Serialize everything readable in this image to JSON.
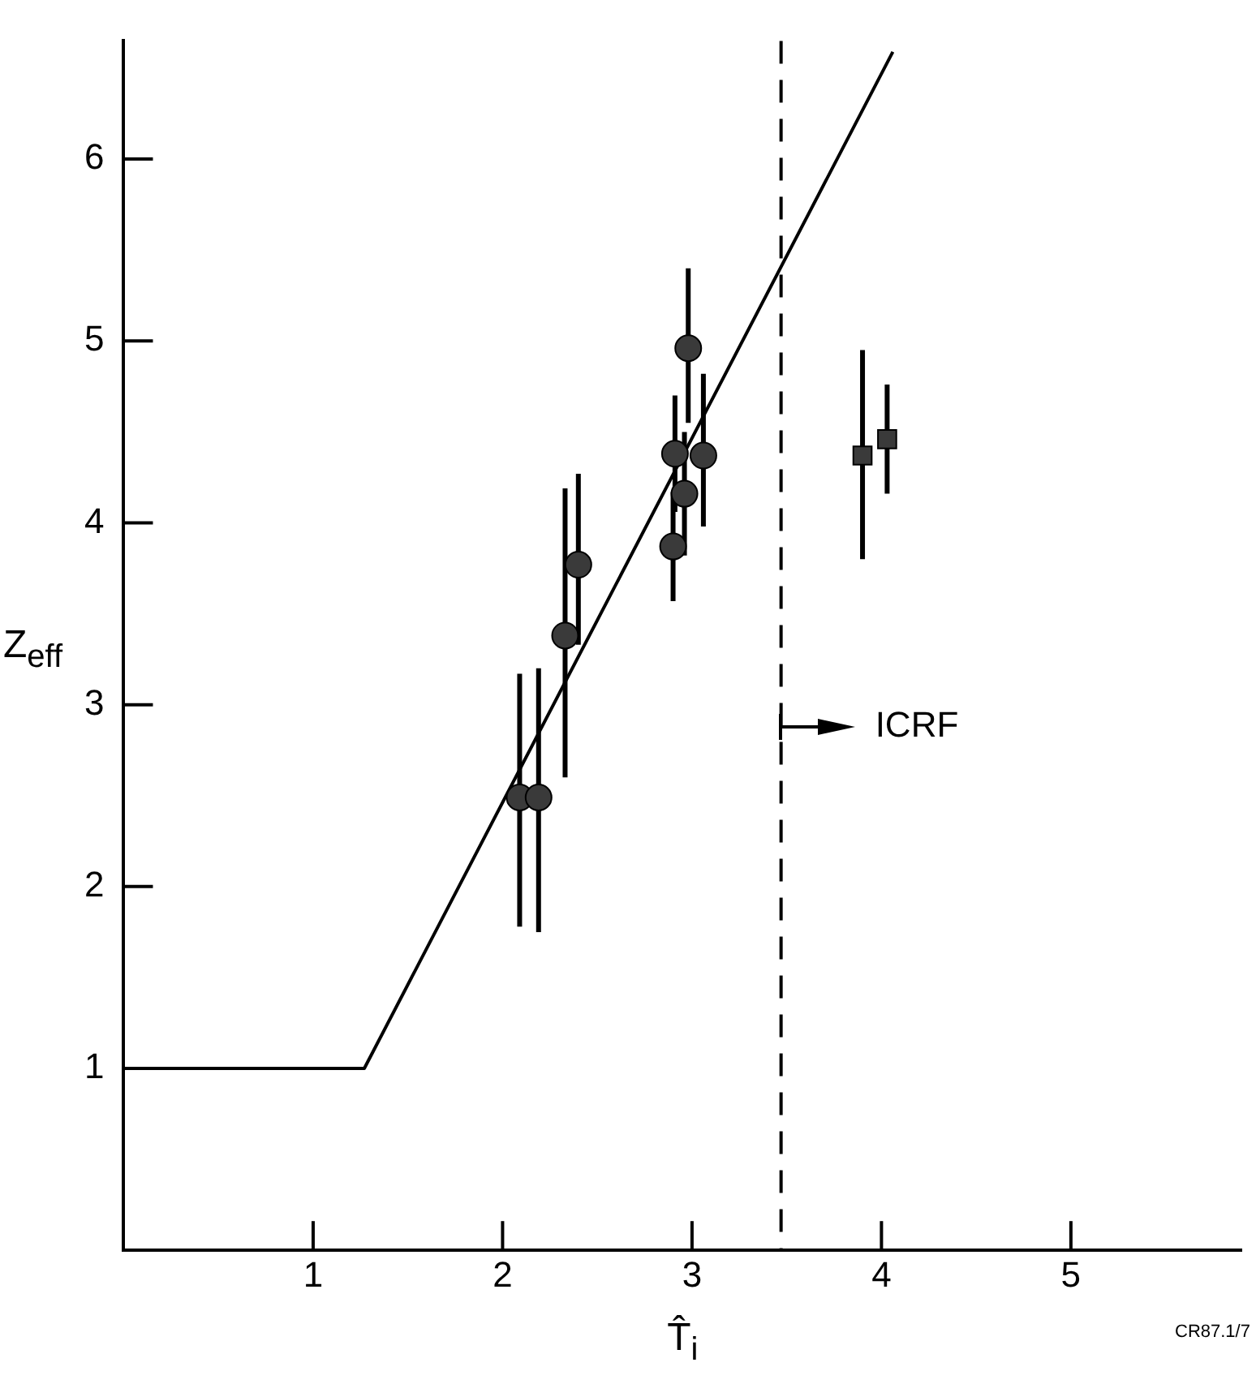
{
  "chart_data": {
    "type": "scatter",
    "xlabel": "T̂$_{i}$",
    "ylabel": "Z$_{eff}$",
    "xlim": [
      0,
      5.9
    ],
    "ylim": [
      0,
      6.65
    ],
    "xticks": [
      1,
      2,
      3,
      4,
      5
    ],
    "yticks": [
      1,
      2,
      3,
      4,
      5,
      6
    ],
    "grid": false,
    "legend": false,
    "annotations": [
      "CR87.1/7"
    ],
    "ref_lines": [
      {
        "axis": "x",
        "value": 3.47,
        "label": "ICRF",
        "color": "#000000",
        "line_style": "dashed"
      }
    ],
    "series": [
      {
        "type": "line",
        "x": [
          0,
          1.27,
          4.06
        ],
        "values": [
          1,
          1,
          6.59
        ],
        "color": "#000000",
        "marker": "none",
        "line_style": "solid"
      },
      {
        "x": [
          2.09,
          2.19,
          2.33,
          2.4,
          2.9,
          2.91,
          2.96,
          2.98,
          3.06
        ],
        "values": [
          2.49,
          2.49,
          3.38,
          3.77,
          3.87,
          4.38,
          4.16,
          4.96,
          4.37
        ],
        "errors": [
          [
            1.78,
            3.17
          ],
          [
            1.75,
            3.2
          ],
          [
            2.6,
            4.19
          ],
          [
            3.33,
            4.27
          ],
          [
            3.57,
            4.17
          ],
          [
            4.06,
            4.7
          ],
          [
            3.82,
            4.5
          ],
          [
            4.55,
            5.4
          ],
          [
            3.98,
            4.82
          ]
        ],
        "color": "#3a3a3a",
        "marker": "circle"
      },
      {
        "x": [
          3.9,
          4.03
        ],
        "values": [
          4.37,
          4.46
        ],
        "errors": [
          [
            3.8,
            4.95
          ],
          [
            4.16,
            4.76
          ]
        ],
        "color": "#3a3a3a",
        "marker": "square"
      }
    ]
  }
}
